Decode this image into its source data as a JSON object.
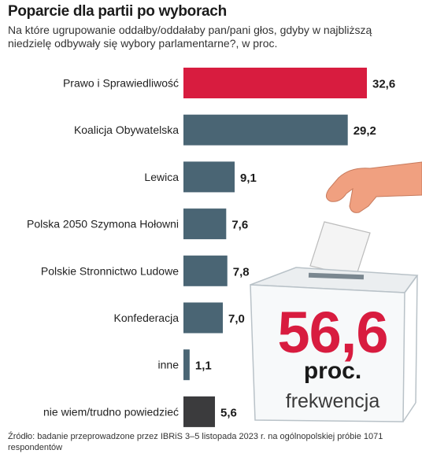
{
  "header": {
    "title": "Poparcie dla partii po wyborach",
    "subtitle": "Na które ugrupowanie oddałby/oddałaby pan/pani głos, gdyby w najbliższą niedzielę odbywały się wybory parlamentarne?, w proc."
  },
  "turnout": {
    "value": "56,6",
    "unit": "proc.",
    "label": "frekwencja"
  },
  "source": "Źródło: badanie przeprowadzone przez IBRiS 3–5 listopada 2023 r. na ogólnopolskiej próbie 1071 respondentów",
  "colors": {
    "highlight": "#d81c3f",
    "bar": "#4a6574",
    "undecided": "#3b3b3d",
    "turnout_number": "#d81c3f"
  },
  "chart_data": {
    "type": "bar",
    "orientation": "horizontal",
    "categories": [
      "Prawo i Sprawiedliwość",
      "Koalicja Obywatelska",
      "Lewica",
      "Polska 2050 Szymona Hołowni",
      "Polskie Stronnictwo Ludowe",
      "Konfederacja",
      "inne",
      "nie wiem/trudno powiedzieć"
    ],
    "values": [
      32.6,
      29.2,
      9.1,
      7.6,
      7.8,
      7.0,
      1.1,
      5.6
    ],
    "value_labels": [
      "32,6",
      "29,2",
      "9,1",
      "7,6",
      "7,8",
      "7,0",
      "1,1",
      "5,6"
    ],
    "bar_colors": [
      "#d81c3f",
      "#4a6574",
      "#4a6574",
      "#4a6574",
      "#4a6574",
      "#4a6574",
      "#4a6574",
      "#3b3b3d"
    ],
    "xlim": [
      0,
      32.6
    ],
    "grid": false,
    "legend": false
  }
}
